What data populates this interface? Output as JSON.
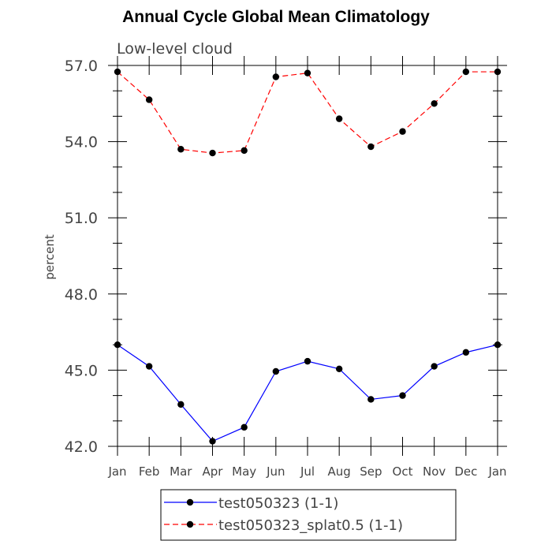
{
  "chart_data": {
    "type": "line",
    "title": "Annual Cycle Global Mean Climatology",
    "subtitle": "Low-level cloud",
    "xlabel": "",
    "ylabel": "percent",
    "categories": [
      "Jan",
      "Feb",
      "Mar",
      "Apr",
      "May",
      "Jun",
      "Jul",
      "Aug",
      "Sep",
      "Oct",
      "Nov",
      "Dec",
      "Jan"
    ],
    "ylim": [
      42.0,
      57.0
    ],
    "yticks": [
      "42.0",
      "45.0",
      "48.0",
      "51.0",
      "54.0",
      "57.0"
    ],
    "grid": false,
    "legend_position": "bottom",
    "series": [
      {
        "name": "test050323 (1-1)",
        "color": "#0000ff",
        "style": "solid",
        "values": [
          46.0,
          45.15,
          43.65,
          42.2,
          42.75,
          44.95,
          45.35,
          45.05,
          43.85,
          44.0,
          45.15,
          45.7,
          46.0
        ]
      },
      {
        "name": "test050323_splat0.5 (1-1)",
        "color": "#ff0000",
        "style": "dashed",
        "values": [
          56.75,
          55.65,
          53.7,
          53.55,
          53.65,
          56.55,
          56.7,
          54.9,
          53.8,
          54.4,
          55.5,
          56.75,
          56.75
        ]
      }
    ]
  }
}
